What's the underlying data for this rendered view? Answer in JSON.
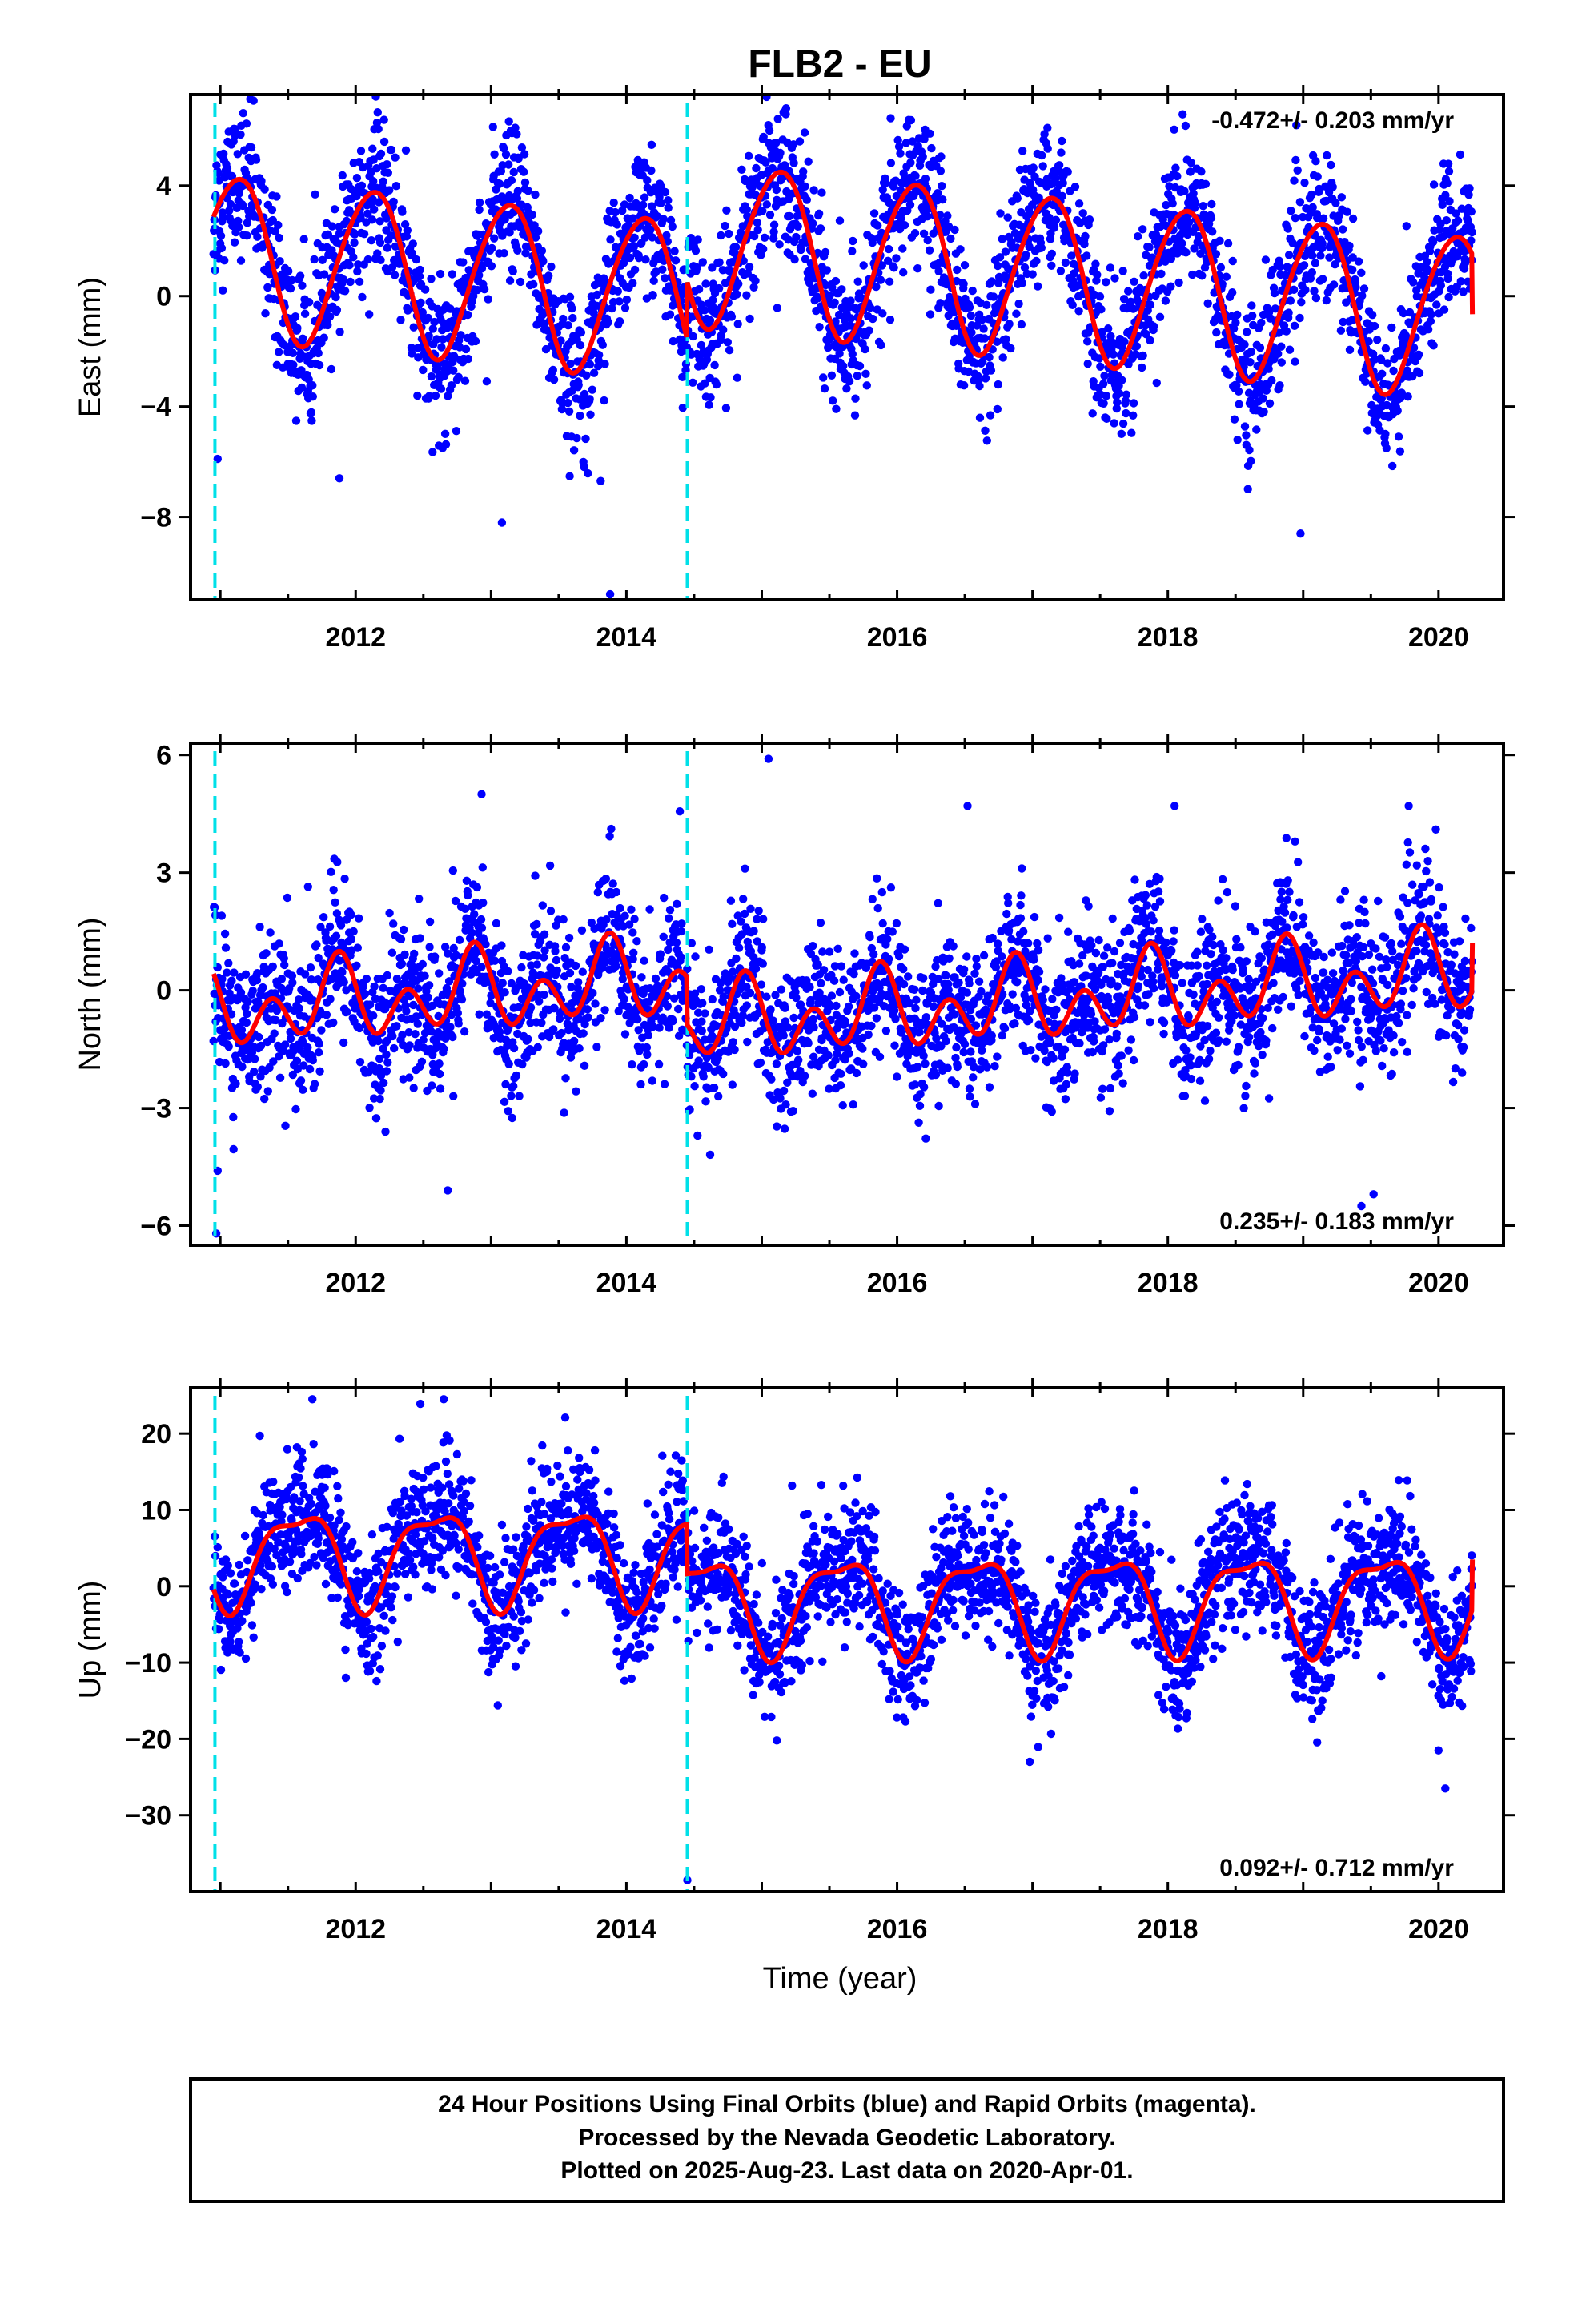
{
  "title": "FLB2 - EU",
  "xlabel": "Time (year)",
  "footer": {
    "line1": "24 Hour Positions Using Final Orbits (blue) and Rapid Orbits (magenta).",
    "line2": "Processed by the Nevada Geodetic Laboratory.",
    "line3": "Plotted on 2025-Aug-23. Last data on 2020-Apr-01."
  },
  "colors": {
    "final_orbits": "#0000ff",
    "model_fit": "#ff0000",
    "step_lines": "#00e0e8",
    "frame": "#000000"
  },
  "chart_data": [
    {
      "type": "scatter",
      "panel": "east",
      "ylabel": "East (mm)",
      "xlim": [
        2010.78,
        2020.48
      ],
      "ylim": [
        -11,
        7.3
      ],
      "xticks": [
        2012,
        2014,
        2016,
        2018,
        2020
      ],
      "yticks": [
        4,
        0,
        -4,
        -8
      ],
      "rate": "-0.472+/- 0.203 mm/yr",
      "rate_position": "top-right",
      "step_epochs": [
        2010.96,
        2014.45
      ],
      "data_range": [
        2010.95,
        2020.25
      ],
      "model": {
        "segments": [
          {
            "start": 2010.95,
            "end": 2014.45,
            "offset": -0.6,
            "amp1": 2.9,
            "phase1": 0.12,
            "amp2": 0.25,
            "phase2": 0.3
          },
          {
            "start": 2014.45,
            "end": 2020.25,
            "offset": 1.5,
            "amp1": 2.95,
            "phase1": 0.12,
            "amp2": 0.25,
            "phase2": 0.3
          }
        ],
        "rate_mm_per_yr": -0.472,
        "ref_epoch": 2015.5,
        "scatter_sd": 1.3
      },
      "outliers": [
        [
          2013.88,
          -10.8
        ],
        [
          2013.08,
          -8.2
        ],
        [
          2018.98,
          -8.6
        ],
        [
          2010.98,
          -5.9
        ],
        [
          2013.81,
          -6.7
        ],
        [
          2011.88,
          -6.6
        ],
        [
          2015.18,
          6.8
        ]
      ]
    },
    {
      "type": "scatter",
      "panel": "north",
      "ylabel": "North (mm)",
      "xlim": [
        2010.78,
        2020.48
      ],
      "ylim": [
        -6.5,
        6.3
      ],
      "xticks": [
        2012,
        2014,
        2016,
        2018,
        2020
      ],
      "yticks": [
        6,
        3,
        0,
        -3,
        -6
      ],
      "rate": "0.235+/- 0.183 mm/yr",
      "rate_position": "bottom-right",
      "step_epochs": [
        2010.96,
        2014.45
      ],
      "data_range": [
        2010.95,
        2020.25
      ],
      "model": {
        "segments": [
          {
            "start": 2010.95,
            "end": 2014.45,
            "offset": 0.55,
            "amp1": 0.55,
            "phase1": 0.86,
            "amp2": 0.75,
            "phase2": 0.88
          },
          {
            "start": 2014.45,
            "end": 2020.25,
            "offset": -0.65,
            "amp1": 0.55,
            "phase1": 0.86,
            "amp2": 0.75,
            "phase2": 0.88
          }
        ],
        "rate_mm_per_yr": 0.235,
        "ref_epoch": 2015.5,
        "scatter_sd": 0.95
      },
      "outliers": [
        [
          2015.05,
          5.9
        ],
        [
          2012.93,
          5.0
        ],
        [
          2016.52,
          4.7
        ],
        [
          2018.05,
          4.7
        ],
        [
          2019.98,
          4.1
        ],
        [
          2010.97,
          -6.2
        ],
        [
          2019.52,
          -5.2
        ],
        [
          2019.43,
          -5.5
        ],
        [
          2012.68,
          -5.1
        ],
        [
          2010.98,
          -4.6
        ]
      ]
    },
    {
      "type": "scatter",
      "panel": "up",
      "ylabel": "Up (mm)",
      "xlim": [
        2010.78,
        2020.48
      ],
      "ylim": [
        -40,
        26
      ],
      "xticks": [
        2012,
        2014,
        2016,
        2018,
        2020
      ],
      "yticks": [
        20,
        10,
        0,
        -10,
        -20,
        -30
      ],
      "rate": "0.092+/- 0.712 mm/yr",
      "rate_position": "bottom-right",
      "step_epochs": [
        2010.96,
        2014.45
      ],
      "data_range": [
        2010.95,
        2020.25
      ],
      "model": {
        "segments": [
          {
            "start": 2010.95,
            "end": 2014.45,
            "offset": 4.5,
            "amp1": 6.0,
            "phase1": 0.58,
            "amp2": 2.0,
            "phase2": 0.31
          },
          {
            "start": 2014.45,
            "end": 2020.25,
            "offset": -2.0,
            "amp1": 6.0,
            "phase1": 0.58,
            "amp2": 2.0,
            "phase2": 0.31
          }
        ],
        "rate_mm_per_yr": 0.092,
        "ref_epoch": 2015.5,
        "scatter_sd": 4.2
      },
      "outliers": [
        [
          2014.45,
          -38.5
        ],
        [
          2020.05,
          -26.5
        ],
        [
          2011.68,
          24.5
        ],
        [
          2012.65,
          24.5
        ],
        [
          2016.98,
          -23.0
        ],
        [
          2020.0,
          -21.5
        ]
      ]
    }
  ]
}
